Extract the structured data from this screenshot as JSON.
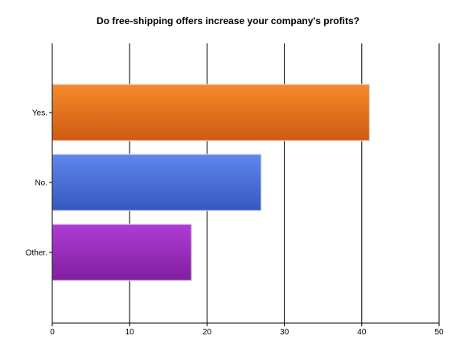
{
  "chart_data": {
    "type": "bar",
    "orientation": "horizontal",
    "title": "Do free-shipping offers increase your company's profits?",
    "xlabel": "",
    "ylabel": "",
    "categories": [
      "Yes.",
      "No.",
      "Other."
    ],
    "values": [
      41,
      27,
      18
    ],
    "xlim": [
      0,
      50
    ],
    "xticks": [
      0,
      10,
      20,
      30,
      40,
      50
    ],
    "grid": "vertical",
    "legend": "none",
    "colors": [
      "#e8711c",
      "#4a72d8",
      "#9a2cbf"
    ]
  }
}
